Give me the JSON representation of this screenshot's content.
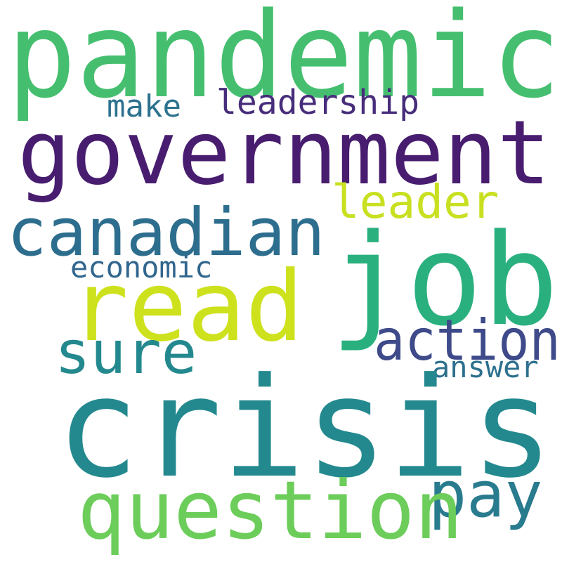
{
  "words": [
    {
      "id": "pandemic",
      "text": "pandemic",
      "color": "#45bf6f"
    },
    {
      "id": "government",
      "text": "government",
      "color": "#481d6f"
    },
    {
      "id": "make",
      "text": "make",
      "color": "#2c728e"
    },
    {
      "id": "leadership",
      "text": "leadership",
      "color": "#472d7b"
    },
    {
      "id": "leader",
      "text": "leader",
      "color": "#c8e020"
    },
    {
      "id": "canadian",
      "text": "canadian",
      "color": "#2d6e8e"
    },
    {
      "id": "job",
      "text": "job",
      "color": "#2ab07f"
    },
    {
      "id": "economic",
      "text": "economic",
      "color": "#31668e"
    },
    {
      "id": "read",
      "text": "read",
      "color": "#cde11d"
    },
    {
      "id": "action",
      "text": "action",
      "color": "#3e4a89"
    },
    {
      "id": "sure",
      "text": "sure",
      "color": "#23898e"
    },
    {
      "id": "answer",
      "text": "answer",
      "color": "#2d708e"
    },
    {
      "id": "crisis",
      "text": "crisis",
      "color": "#23898e"
    },
    {
      "id": "pay",
      "text": "pay",
      "color": "#297b8e"
    },
    {
      "id": "question",
      "text": "question",
      "color": "#6ccd5a"
    }
  ]
}
